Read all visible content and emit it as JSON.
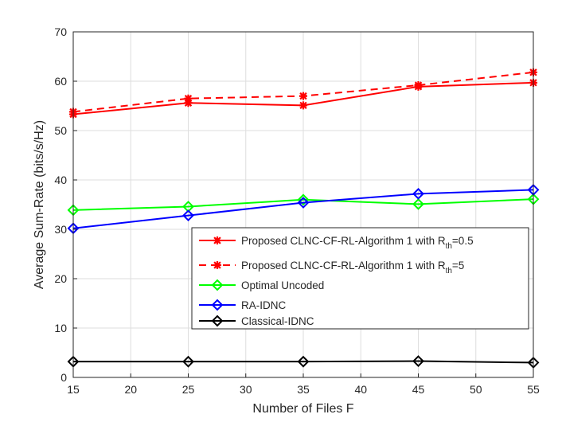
{
  "chart_data": {
    "type": "line",
    "title": "",
    "xlabel": "Number of Files F",
    "ylabel": "Average Sum-Rate (bits/s/Hz)",
    "xlim": [
      15,
      55
    ],
    "ylim": [
      0,
      70
    ],
    "xticks": [
      15,
      20,
      25,
      30,
      35,
      40,
      45,
      50,
      55
    ],
    "yticks": [
      0,
      10,
      20,
      30,
      40,
      50,
      60,
      70
    ],
    "grid": true,
    "legend_position": "bottom-right",
    "x": [
      15,
      25,
      35,
      45,
      55
    ],
    "series": [
      {
        "name": "Proposed CLNC-CF-RL-Algorithm 1 with R",
        "sub": "th",
        "suffix": "=0.5",
        "color": "#ff0000",
        "dash": "solid",
        "marker": "asterisk",
        "values": [
          53.3,
          55.6,
          55.1,
          58.9,
          59.7
        ]
      },
      {
        "name": "Proposed CLNC-CF-RL-Algorithm 1 with R",
        "sub": "th",
        "suffix": "=5",
        "color": "#ff0000",
        "dash": "dashed",
        "marker": "asterisk",
        "values": [
          53.8,
          56.5,
          57.0,
          59.2,
          61.8
        ]
      },
      {
        "name": "Optimal Uncoded",
        "sub": "",
        "suffix": "",
        "color": "#00ff00",
        "dash": "solid",
        "marker": "diamond",
        "values": [
          33.9,
          34.6,
          36.0,
          35.1,
          36.1
        ]
      },
      {
        "name": "RA-IDNC",
        "sub": "",
        "suffix": "",
        "color": "#0000ff",
        "dash": "solid",
        "marker": "diamond",
        "values": [
          30.2,
          32.8,
          35.4,
          37.2,
          38.0
        ]
      },
      {
        "name": "Classical-IDNC",
        "sub": "",
        "suffix": "",
        "color": "#000000",
        "dash": "solid",
        "marker": "diamond",
        "values": [
          3.2,
          3.2,
          3.2,
          3.3,
          3.0
        ]
      }
    ]
  }
}
